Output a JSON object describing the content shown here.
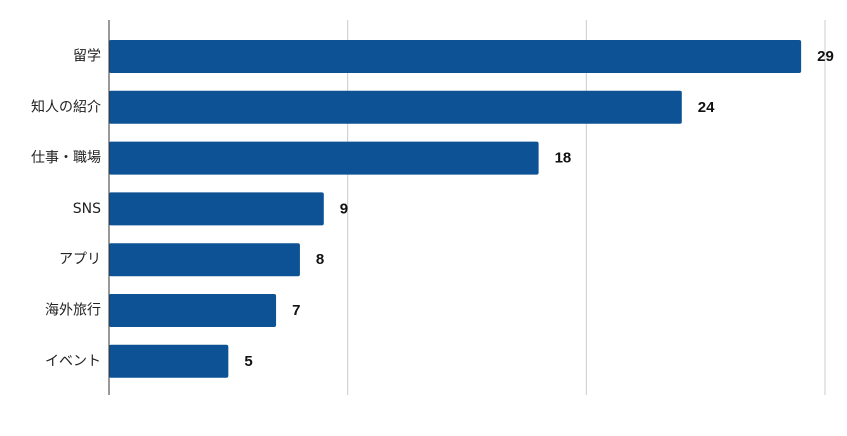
{
  "chart_data": {
    "type": "bar",
    "orientation": "horizontal",
    "categories": [
      "留学",
      "知人の紹介",
      "仕事・職場",
      "SNS",
      "アプリ",
      "海外旅行",
      "イベント"
    ],
    "values": [
      29,
      24,
      18,
      9,
      8,
      7,
      5
    ],
    "value_labels": [
      "29",
      "24",
      "18",
      "9",
      "8",
      "7",
      "5"
    ],
    "xlim": [
      0,
      30
    ],
    "grid": true,
    "bar_color": "#0d5294"
  }
}
